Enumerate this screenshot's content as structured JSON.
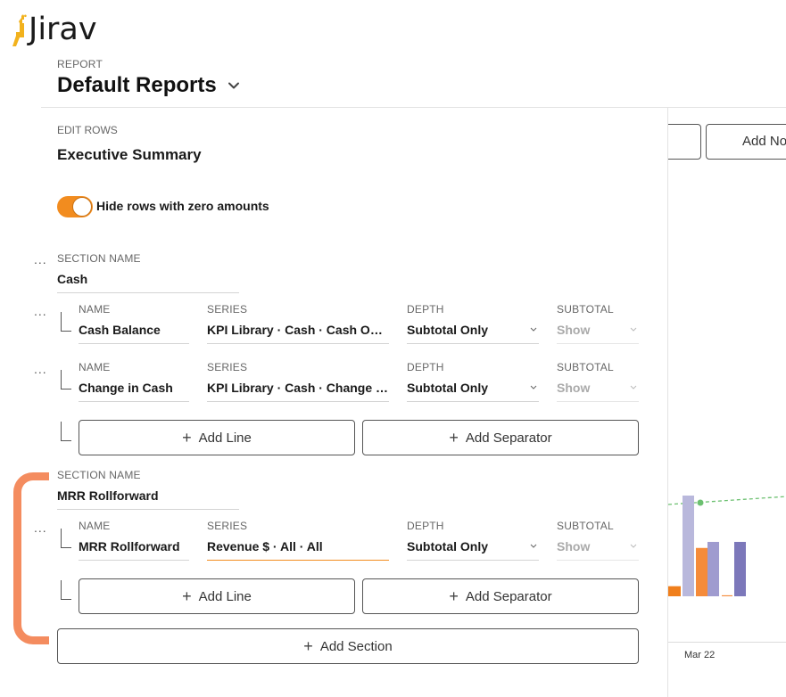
{
  "app": {
    "name": "Jirav",
    "logo_icon": "giraffe-logo-icon",
    "brand_color": "#f28c1f"
  },
  "report": {
    "label": "REPORT",
    "title": "Default Reports"
  },
  "editor": {
    "label": "EDIT ROWS",
    "title": "Executive Summary",
    "toggle": {
      "label": "Hide rows with zero amounts",
      "on": true
    }
  },
  "labels": {
    "section_name": "SECTION NAME",
    "name": "NAME",
    "series": "SERIES",
    "depth": "DEPTH",
    "subtotal": "SUBTOTAL",
    "dots": "..."
  },
  "sections": [
    {
      "name": "Cash",
      "rows": [
        {
          "name": "Cash Balance",
          "series": "KPI Library · Cash · Cash On Hand",
          "depth": "Subtotal Only",
          "subtotal": "Show"
        },
        {
          "name": "Change in Cash",
          "series": "KPI Library · Cash · Change in Cash",
          "depth": "Subtotal Only",
          "subtotal": "Show"
        }
      ],
      "add_line": "Add Line",
      "add_separator": "Add Separator"
    },
    {
      "name": "MRR Rollforward",
      "rows": [
        {
          "name": "MRR Rollforward",
          "series": "Revenue $ · All · All",
          "depth": "Subtotal Only",
          "subtotal": "Show"
        }
      ],
      "add_line": "Add Line",
      "add_separator": "Add Separator"
    }
  ],
  "add_section": "Add Section",
  "right_panel": {
    "add_button_label": "Add Note",
    "x_tick": "Mar 22",
    "bar_colors": [
      "#f07f1c",
      "#b9b8dc",
      "#f58b3a",
      "#9f9bcf",
      "#f58b3a",
      "#7c78ba"
    ],
    "bar_values": [
      0.1,
      1.0,
      0.48,
      0.54,
      0.01,
      0.54
    ],
    "line_color": "#6cc070"
  },
  "highlight": {
    "color": "#f48c5f",
    "target": "MRR Rollforward section"
  }
}
